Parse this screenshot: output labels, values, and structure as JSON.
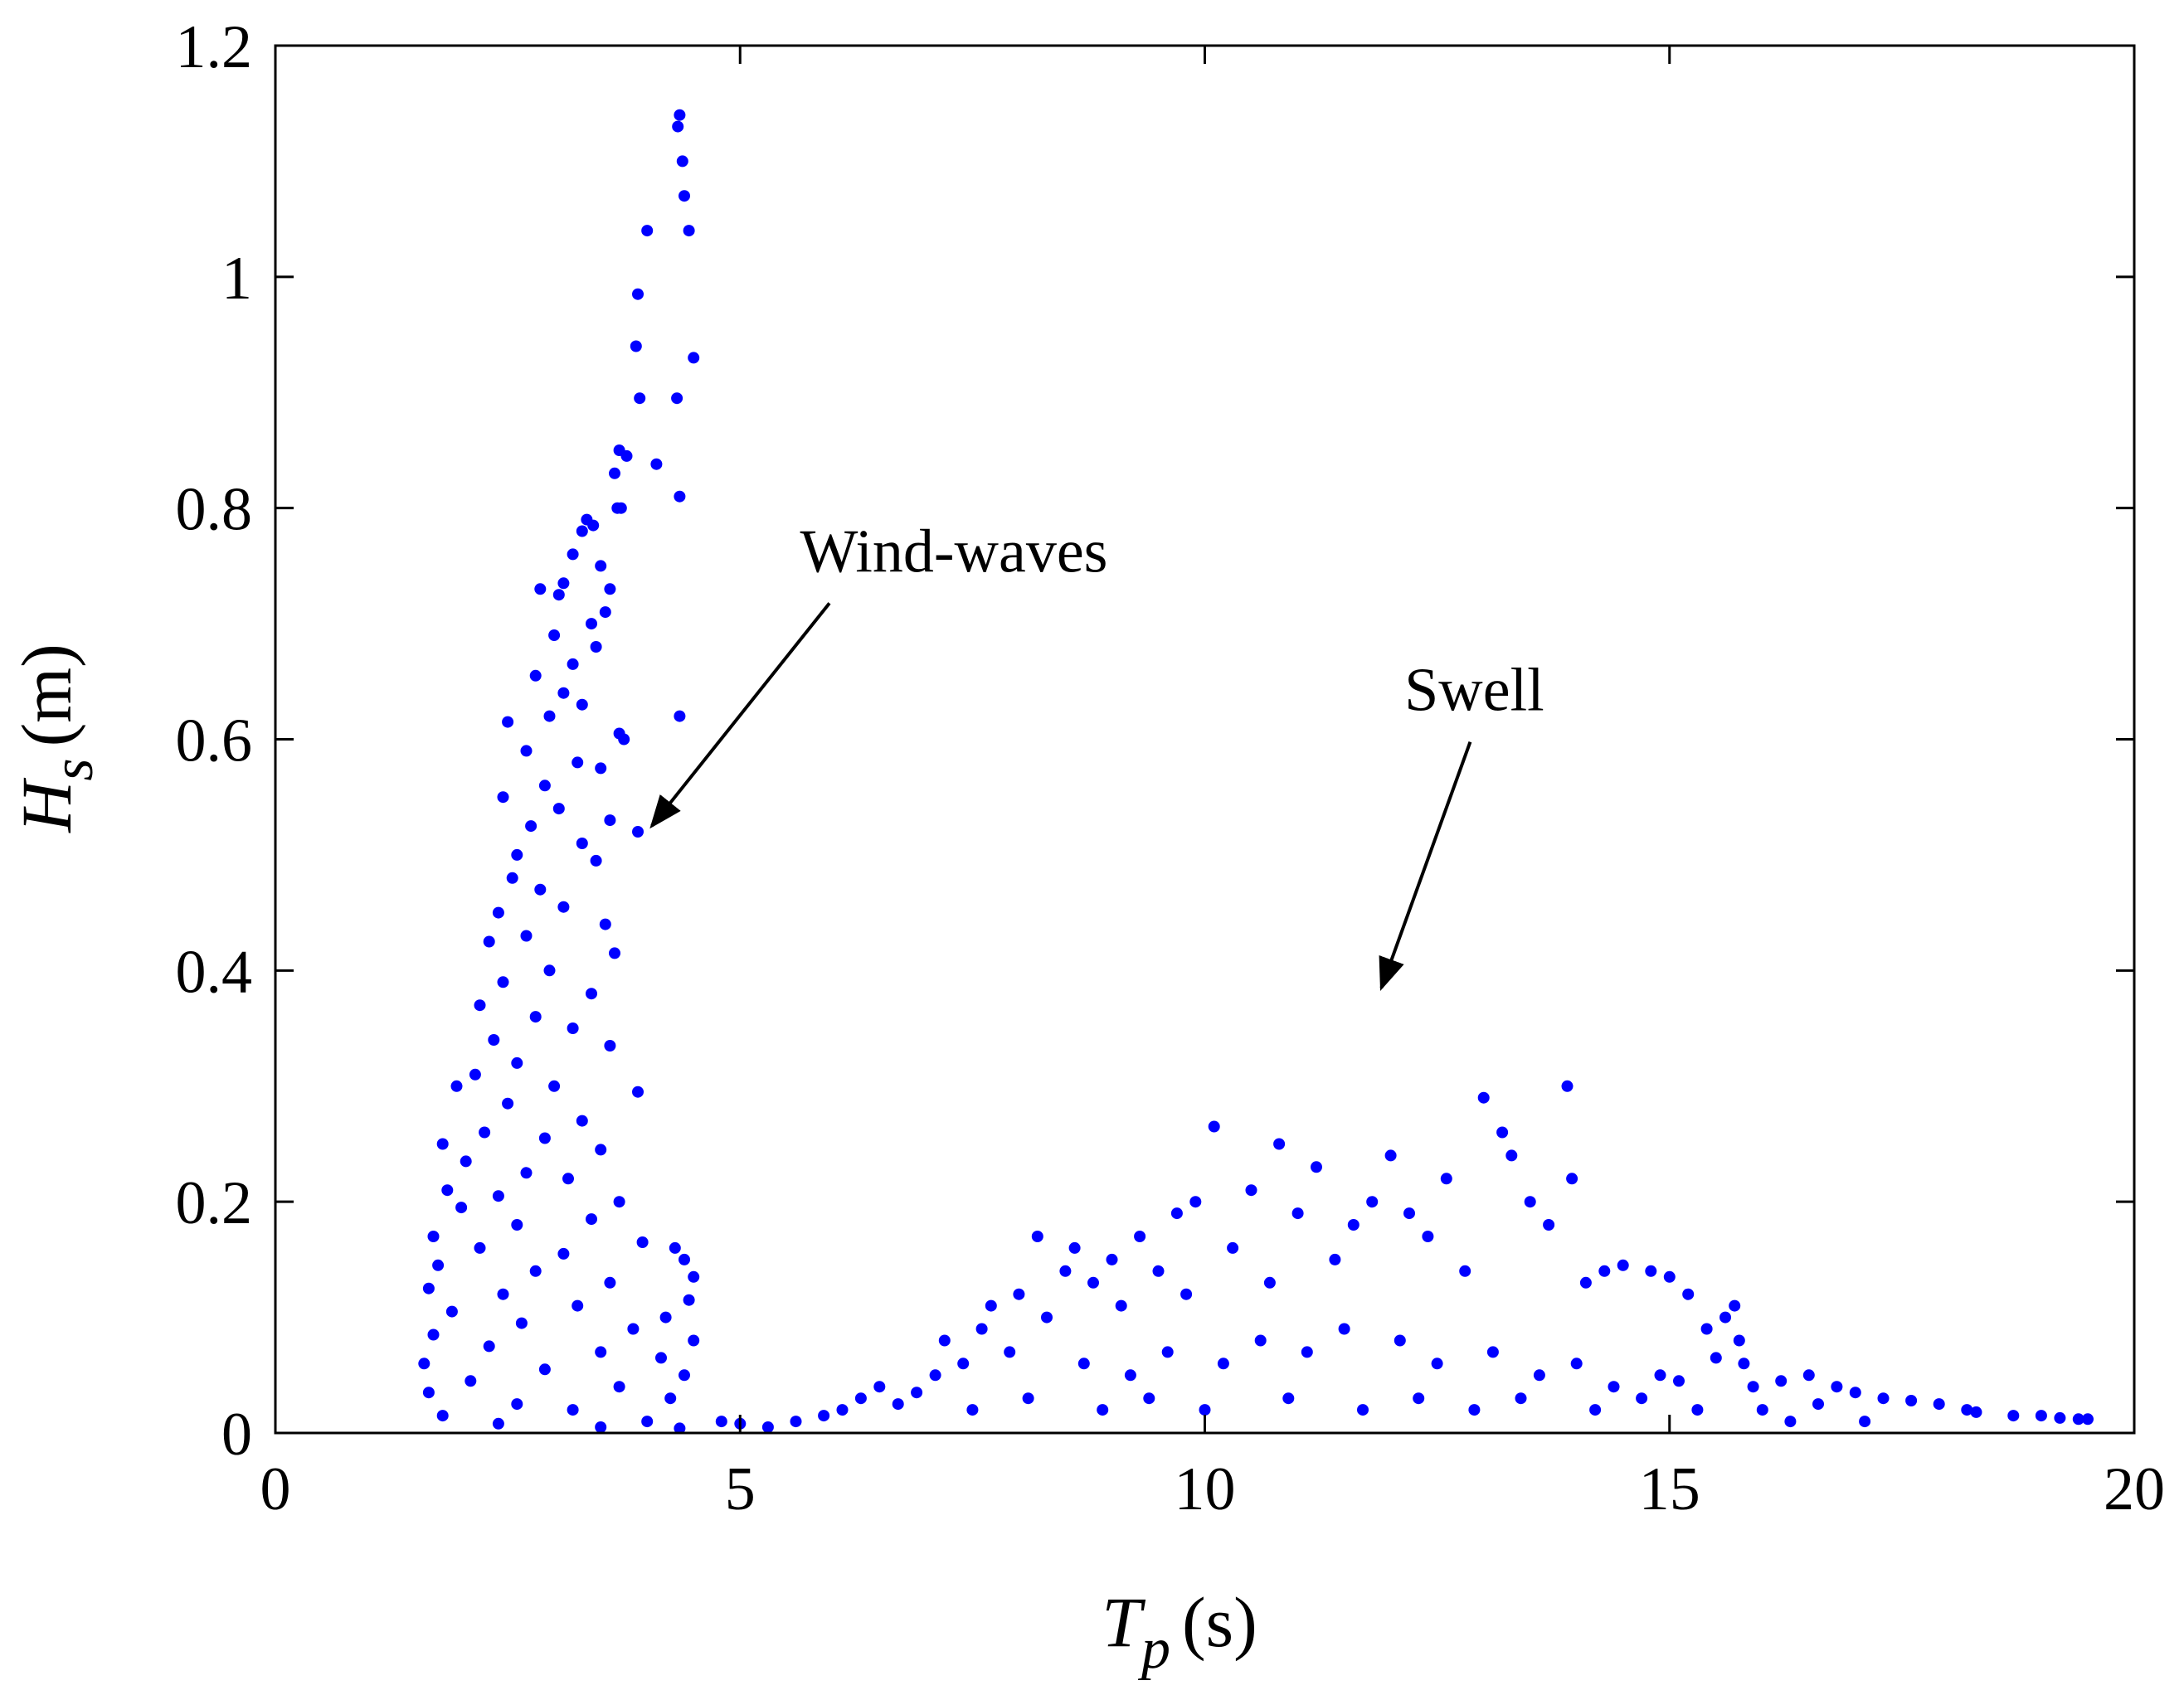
{
  "chart_data": {
    "type": "scatter",
    "title": "",
    "xlabel": {
      "symbol": "T",
      "subscript": "p",
      "unit": "(s)"
    },
    "ylabel": {
      "symbol": "H",
      "subscript": "s",
      "unit": "(m)"
    },
    "xlim": [
      0,
      20
    ],
    "ylim": [
      0,
      1.2
    ],
    "x_ticks": [
      0,
      5,
      10,
      15,
      20
    ],
    "x_tick_labels": [
      "0",
      "5",
      "10",
      "15",
      "20"
    ],
    "y_ticks": [
      0,
      0.2,
      0.4,
      0.6,
      0.8,
      1,
      1.2
    ],
    "y_tick_labels": [
      "0",
      "0.2",
      "0.4",
      "0.6",
      "0.8",
      "1",
      "1.2"
    ],
    "grid": false,
    "marker_color": "#0000ff",
    "series": [
      {
        "name": "Wind-waves",
        "points": [
          [
            4.35,
            1.14
          ],
          [
            4.33,
            1.13
          ],
          [
            4.38,
            1.1
          ],
          [
            4.4,
            1.07
          ],
          [
            4.45,
            1.04
          ],
          [
            4.0,
            1.04
          ],
          [
            3.9,
            0.985
          ],
          [
            3.88,
            0.94
          ],
          [
            4.5,
            0.93
          ],
          [
            3.92,
            0.895
          ],
          [
            4.32,
            0.895
          ],
          [
            3.7,
            0.85
          ],
          [
            3.78,
            0.845
          ],
          [
            4.1,
            0.838
          ],
          [
            3.65,
            0.83
          ],
          [
            4.35,
            0.81
          ],
          [
            3.68,
            0.8
          ],
          [
            3.72,
            0.8
          ],
          [
            3.35,
            0.79
          ],
          [
            3.42,
            0.785
          ],
          [
            3.3,
            0.78
          ],
          [
            3.2,
            0.76
          ],
          [
            3.5,
            0.75
          ],
          [
            3.1,
            0.735
          ],
          [
            2.85,
            0.73
          ],
          [
            3.05,
            0.725
          ],
          [
            3.6,
            0.73
          ],
          [
            3.55,
            0.71
          ],
          [
            3.4,
            0.7
          ],
          [
            3.0,
            0.69
          ],
          [
            3.45,
            0.68
          ],
          [
            3.2,
            0.665
          ],
          [
            2.8,
            0.655
          ],
          [
            3.1,
            0.64
          ],
          [
            3.3,
            0.63
          ],
          [
            2.95,
            0.62
          ],
          [
            4.35,
            0.62
          ],
          [
            2.5,
            0.615
          ],
          [
            3.7,
            0.605
          ],
          [
            3.75,
            0.6
          ],
          [
            2.7,
            0.59
          ],
          [
            3.25,
            0.58
          ],
          [
            3.5,
            0.575
          ],
          [
            2.9,
            0.56
          ],
          [
            2.45,
            0.55
          ],
          [
            3.05,
            0.54
          ],
          [
            3.6,
            0.53
          ],
          [
            2.75,
            0.525
          ],
          [
            3.9,
            0.52
          ],
          [
            3.3,
            0.51
          ],
          [
            2.6,
            0.5
          ],
          [
            3.45,
            0.495
          ],
          [
            2.55,
            0.48
          ],
          [
            2.85,
            0.47
          ],
          [
            3.1,
            0.455
          ],
          [
            2.4,
            0.45
          ],
          [
            3.55,
            0.44
          ],
          [
            2.7,
            0.43
          ],
          [
            2.3,
            0.425
          ],
          [
            3.65,
            0.415
          ],
          [
            2.95,
            0.4
          ],
          [
            2.45,
            0.39
          ],
          [
            3.4,
            0.38
          ],
          [
            2.2,
            0.37
          ],
          [
            2.8,
            0.36
          ],
          [
            3.2,
            0.35
          ],
          [
            2.35,
            0.34
          ],
          [
            3.6,
            0.335
          ],
          [
            2.6,
            0.32
          ],
          [
            2.15,
            0.31
          ],
          [
            3.0,
            0.3
          ],
          [
            3.9,
            0.295
          ],
          [
            1.95,
            0.3
          ],
          [
            2.5,
            0.285
          ],
          [
            3.3,
            0.27
          ],
          [
            2.25,
            0.26
          ],
          [
            2.9,
            0.255
          ],
          [
            1.8,
            0.25
          ],
          [
            3.5,
            0.245
          ],
          [
            2.05,
            0.235
          ],
          [
            2.7,
            0.225
          ],
          [
            3.15,
            0.22
          ],
          [
            1.85,
            0.21
          ],
          [
            2.4,
            0.205
          ],
          [
            3.7,
            0.2
          ],
          [
            2.0,
            0.195
          ],
          [
            3.4,
            0.185
          ],
          [
            2.6,
            0.18
          ],
          [
            1.7,
            0.17
          ],
          [
            3.95,
            0.165
          ],
          [
            4.3,
            0.16
          ],
          [
            2.2,
            0.16
          ],
          [
            3.1,
            0.155
          ],
          [
            4.4,
            0.15
          ],
          [
            1.75,
            0.145
          ],
          [
            2.8,
            0.14
          ],
          [
            4.5,
            0.135
          ],
          [
            3.6,
            0.13
          ],
          [
            1.65,
            0.125
          ],
          [
            2.45,
            0.12
          ],
          [
            4.45,
            0.115
          ],
          [
            3.25,
            0.11
          ],
          [
            1.9,
            0.105
          ],
          [
            4.2,
            0.1
          ],
          [
            2.65,
            0.095
          ],
          [
            3.85,
            0.09
          ],
          [
            1.7,
            0.085
          ],
          [
            4.5,
            0.08
          ],
          [
            2.3,
            0.075
          ],
          [
            3.5,
            0.07
          ],
          [
            4.15,
            0.065
          ],
          [
            1.6,
            0.06
          ],
          [
            2.9,
            0.055
          ],
          [
            4.4,
            0.05
          ],
          [
            2.1,
            0.045
          ],
          [
            3.7,
            0.04
          ],
          [
            1.65,
            0.035
          ],
          [
            4.25,
            0.03
          ],
          [
            2.6,
            0.025
          ],
          [
            3.2,
            0.02
          ],
          [
            1.8,
            0.015
          ],
          [
            4.0,
            0.01
          ],
          [
            2.4,
            0.008
          ],
          [
            3.5,
            0.005
          ],
          [
            4.35,
            0.004
          ]
        ]
      },
      {
        "name": "Swell",
        "points": [
          [
            4.8,
            0.01
          ],
          [
            5.0,
            0.008
          ],
          [
            5.3,
            0.005
          ],
          [
            5.6,
            0.01
          ],
          [
            5.9,
            0.015
          ],
          [
            6.1,
            0.02
          ],
          [
            6.3,
            0.03
          ],
          [
            6.5,
            0.04
          ],
          [
            6.7,
            0.025
          ],
          [
            6.9,
            0.035
          ],
          [
            7.1,
            0.05
          ],
          [
            7.2,
            0.08
          ],
          [
            7.4,
            0.06
          ],
          [
            7.6,
            0.09
          ],
          [
            7.7,
            0.11
          ],
          [
            7.9,
            0.07
          ],
          [
            8.0,
            0.12
          ],
          [
            8.2,
            0.17
          ],
          [
            8.3,
            0.1
          ],
          [
            8.5,
            0.14
          ],
          [
            8.6,
            0.16
          ],
          [
            8.8,
            0.13
          ],
          [
            9.0,
            0.15
          ],
          [
            9.1,
            0.11
          ],
          [
            9.3,
            0.17
          ],
          [
            9.5,
            0.14
          ],
          [
            9.7,
            0.19
          ],
          [
            9.8,
            0.12
          ],
          [
            9.9,
            0.2
          ],
          [
            10.1,
            0.265
          ],
          [
            10.3,
            0.16
          ],
          [
            10.5,
            0.21
          ],
          [
            10.7,
            0.13
          ],
          [
            10.8,
            0.25
          ],
          [
            11.0,
            0.19
          ],
          [
            11.2,
            0.23
          ],
          [
            11.4,
            0.15
          ],
          [
            11.6,
            0.18
          ],
          [
            11.8,
            0.2
          ],
          [
            12.0,
            0.24
          ],
          [
            12.2,
            0.19
          ],
          [
            12.4,
            0.17
          ],
          [
            12.6,
            0.22
          ],
          [
            12.8,
            0.14
          ],
          [
            13.0,
            0.29
          ],
          [
            13.2,
            0.26
          ],
          [
            13.3,
            0.24
          ],
          [
            13.5,
            0.2
          ],
          [
            13.7,
            0.18
          ],
          [
            13.9,
            0.3
          ],
          [
            13.95,
            0.22
          ],
          [
            14.1,
            0.13
          ],
          [
            14.3,
            0.14
          ],
          [
            14.5,
            0.145
          ],
          [
            14.8,
            0.14
          ],
          [
            15.0,
            0.135
          ],
          [
            15.2,
            0.12
          ],
          [
            15.4,
            0.09
          ],
          [
            15.6,
            0.1
          ],
          [
            15.7,
            0.11
          ],
          [
            15.75,
            0.08
          ],
          [
            15.8,
            0.06
          ],
          [
            15.5,
            0.065
          ],
          [
            14.9,
            0.05
          ],
          [
            15.1,
            0.045
          ],
          [
            15.9,
            0.04
          ],
          [
            16.2,
            0.045
          ],
          [
            16.5,
            0.05
          ],
          [
            16.8,
            0.04
          ],
          [
            17.0,
            0.035
          ],
          [
            17.3,
            0.03
          ],
          [
            17.6,
            0.028
          ],
          [
            17.9,
            0.025
          ],
          [
            18.2,
            0.02
          ],
          [
            18.3,
            0.018
          ],
          [
            18.7,
            0.015
          ],
          [
            19.0,
            0.015
          ],
          [
            19.2,
            0.013
          ],
          [
            19.4,
            0.012
          ],
          [
            19.5,
            0.012
          ],
          [
            8.7,
            0.06
          ],
          [
            9.2,
            0.05
          ],
          [
            9.6,
            0.07
          ],
          [
            10.2,
            0.06
          ],
          [
            10.6,
            0.08
          ],
          [
            11.1,
            0.07
          ],
          [
            11.5,
            0.09
          ],
          [
            12.1,
            0.08
          ],
          [
            12.5,
            0.06
          ],
          [
            13.1,
            0.07
          ],
          [
            13.6,
            0.05
          ],
          [
            14.0,
            0.06
          ],
          [
            14.4,
            0.04
          ],
          [
            16.0,
            0.02
          ],
          [
            16.6,
            0.025
          ],
          [
            7.5,
            0.02
          ],
          [
            8.1,
            0.03
          ],
          [
            8.9,
            0.02
          ],
          [
            9.4,
            0.03
          ],
          [
            10.0,
            0.02
          ],
          [
            10.9,
            0.03
          ],
          [
            11.7,
            0.02
          ],
          [
            12.3,
            0.03
          ],
          [
            12.9,
            0.02
          ],
          [
            13.4,
            0.03
          ],
          [
            14.2,
            0.02
          ],
          [
            14.7,
            0.03
          ],
          [
            15.3,
            0.02
          ],
          [
            16.3,
            0.01
          ],
          [
            17.1,
            0.01
          ]
        ]
      }
    ],
    "annotations": [
      {
        "text": "Wind-waves",
        "x": 7.3,
        "y": 0.745,
        "arrow_to": [
          4.05,
          0.525
        ]
      },
      {
        "text": "Swell",
        "x": 12.9,
        "y": 0.625,
        "arrow_to": [
          11.9,
          0.385
        ]
      }
    ]
  }
}
